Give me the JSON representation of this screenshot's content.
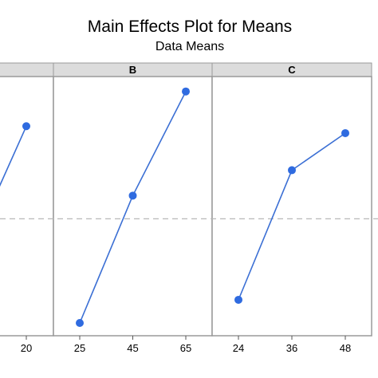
{
  "chart_data": {
    "type": "line",
    "title": "Main Effects Plot for Means",
    "subtitle": "Data Means",
    "grid": false,
    "reference_line": "dashed horizontal line at overall mean",
    "colors": {
      "line": "#3b6fd4",
      "marker": "#2f6be0",
      "panel_header": "#dcdcdc",
      "panel_border": "#9a9a9a",
      "reference_line": "#b8b8b8"
    },
    "panels": [
      {
        "name": "",
        "categories": [
          "",
          "20"
        ],
        "values": [
          null,
          0.85
        ],
        "note": "partially visible panel, left side cropped"
      },
      {
        "name": "B",
        "categories": [
          "25",
          "45",
          "65"
        ],
        "values": [
          0.0,
          0.55,
          1.0
        ]
      },
      {
        "name": "C",
        "categories": [
          "24",
          "36",
          "48"
        ],
        "values": [
          0.1,
          0.66,
          0.82
        ]
      }
    ],
    "visible_partial": {
      "first_panel_left_point_value": 0.58
    },
    "ylim": [
      0,
      1.03
    ],
    "reference_value": 0.45
  }
}
